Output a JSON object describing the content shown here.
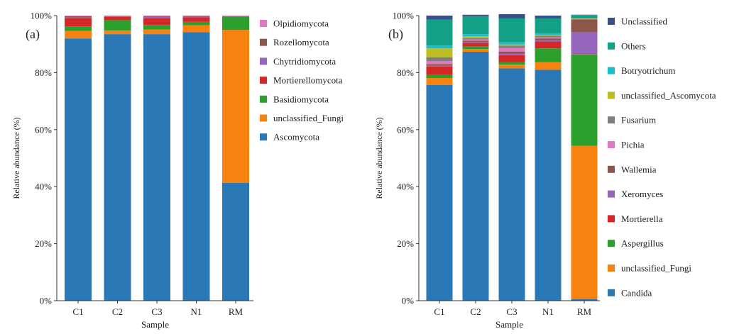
{
  "chart_data": [
    {
      "type": "bar",
      "stacked": true,
      "panel_label": "(a)",
      "xlabel": "Sample",
      "ylabel": "Relative abundance (%)",
      "ylim": [
        0,
        100
      ],
      "yticks": [
        "0%",
        "20%",
        "40%",
        "60%",
        "80%",
        "100%"
      ],
      "grid": false,
      "legend_position": "right",
      "categories": [
        "C1",
        "C2",
        "C3",
        "N1",
        "RM"
      ],
      "series": [
        {
          "name": "Ascomycota",
          "color": "#2a78b5",
          "values": [
            92.0,
            93.5,
            93.5,
            94.2,
            41.3
          ]
        },
        {
          "name": "unclassified_Fungi",
          "color": "#f7820f",
          "values": [
            2.6,
            1.3,
            1.6,
            2.4,
            53.7
          ]
        },
        {
          "name": "Basidiomycota",
          "color": "#2ca02c",
          "values": [
            1.6,
            3.6,
            1.6,
            1.2,
            4.7
          ]
        },
        {
          "name": "Mortierellomycota",
          "color": "#d62728",
          "values": [
            2.9,
            1.1,
            2.4,
            1.6,
            0.1
          ]
        },
        {
          "name": "Chytridiomycota",
          "color": "#9467bd",
          "values": [
            0.2,
            0.2,
            0.5,
            0.2,
            0.05
          ]
        },
        {
          "name": "Rozellomycota",
          "color": "#8c564b",
          "values": [
            0.5,
            0.2,
            0.3,
            0.3,
            0.05
          ]
        },
        {
          "name": "Olpidiomycota",
          "color": "#e377c2",
          "values": [
            0.2,
            0.1,
            0.1,
            0.1,
            0.1
          ]
        }
      ]
    },
    {
      "type": "bar",
      "stacked": true,
      "panel_label": "(b)",
      "xlabel": "Sample",
      "ylabel": "Relative abundance (%)",
      "ylim": [
        0,
        100
      ],
      "yticks": [
        "0%",
        "20%",
        "40%",
        "60%",
        "80%",
        "100%"
      ],
      "grid": false,
      "legend_position": "right",
      "categories": [
        "C1",
        "C2",
        "C3",
        "N1",
        "RM"
      ],
      "series": [
        {
          "name": "Candida",
          "color": "#2a78b5",
          "values": [
            75.7,
            87.3,
            81.5,
            81.0,
            0.5
          ]
        },
        {
          "name": "unclassified_Fungi",
          "color": "#f7820f",
          "values": [
            2.4,
            1.0,
            1.3,
            2.7,
            53.8
          ]
        },
        {
          "name": "Aspergillus",
          "color": "#2ca02c",
          "values": [
            1.1,
            0.8,
            0.8,
            4.8,
            32.1
          ]
        },
        {
          "name": "Mortierella",
          "color": "#d62728",
          "values": [
            2.9,
            1.3,
            2.5,
            2.4,
            0.1
          ]
        },
        {
          "name": "Xeromyces",
          "color": "#9467bd",
          "values": [
            0.3,
            0.3,
            0.5,
            0.5,
            7.6
          ]
        },
        {
          "name": "Wallemia",
          "color": "#8c564b",
          "values": [
            0.6,
            0.5,
            0.8,
            0.6,
            4.6
          ]
        },
        {
          "name": "Pichia",
          "color": "#e377c2",
          "values": [
            1.0,
            0.4,
            1.2,
            0.4,
            0.1
          ]
        },
        {
          "name": "Fusarium",
          "color": "#7f7f7f",
          "values": [
            1.4,
            0.5,
            0.9,
            0.5,
            0.1
          ]
        },
        {
          "name": "unclassified_Ascomycota",
          "color": "#bcbd22",
          "values": [
            3.1,
            0.6,
            0.4,
            0.3,
            0.1
          ]
        },
        {
          "name": "Botryotrichum",
          "color": "#17becf",
          "values": [
            1.0,
            0.8,
            0.8,
            0.6,
            0.1
          ]
        },
        {
          "name": "Others",
          "color": "#12a086",
          "values": [
            9.1,
            6.3,
            8.3,
            5.2,
            1.1
          ]
        },
        {
          "name": "Unclassified",
          "color": "#3b4f8c",
          "values": [
            1.4,
            0.5,
            1.5,
            1.0,
            0.1
          ]
        }
      ]
    }
  ]
}
